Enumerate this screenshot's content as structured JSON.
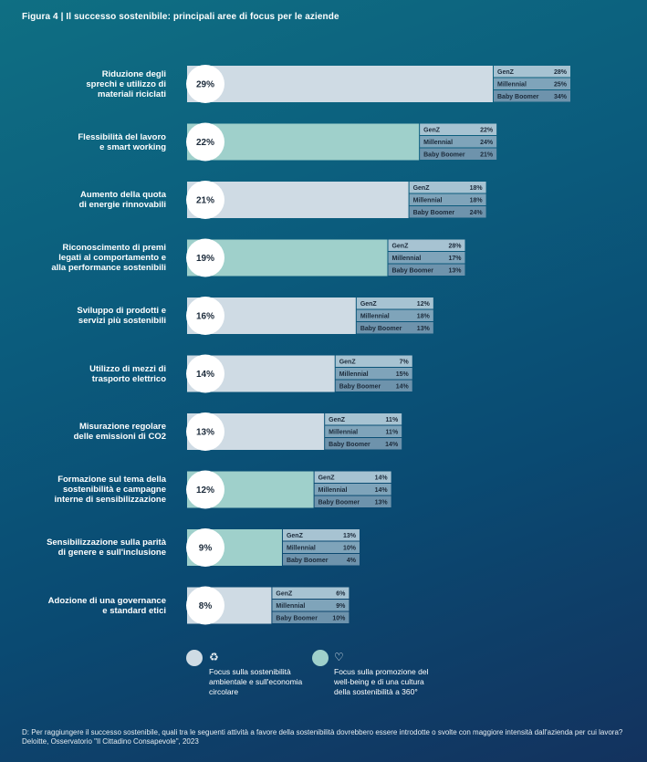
{
  "figure_title": "Figura 4 | Il successo sostenibile: principali aree di focus per le aziende",
  "legend": [
    {
      "label": "Focus sulla sostenibilità ambientale e sull'economia circolare",
      "color": "#cfdbe4",
      "icon": "leaf-hands-icon"
    },
    {
      "label": "Focus sulla promozione del well-being e di una cultura della sostenibilità a 360°",
      "color": "#9fd0cb",
      "icon": "heart-hands-icon"
    }
  ],
  "footnote": {
    "question": "D: Per raggiungere il successo sostenibile, quali tra le seguenti attività a favore della sostenibilità dovrebbero essere introdotte o svolte con maggiore intensità dall'azienda per cui lavora?",
    "source": "Deloitte, Osservatorio \"Il Cittadino Consapevole\", 2023"
  },
  "colors": {
    "environmental": "#cfdbe4",
    "wellbeing": "#9fd0cb",
    "breakdown_genz": "#a7c3d2",
    "breakdown_millennial": "#7fa4ba",
    "breakdown_babyboomer": "#6e93ac",
    "circle": "#ffffff",
    "text_dark": "#1b2a3a"
  },
  "chart_data": {
    "type": "bar",
    "orientation": "horizontal",
    "title": "Figura 4 | Il successo sostenibile: principali aree di focus per le aziende",
    "value_unit": "%",
    "xlim": [
      0,
      29
    ],
    "breakdown_groups": [
      "GenZ",
      "Millennial",
      "Baby Boomer"
    ],
    "categories": [
      {
        "label": "Riduzione degli\nsprechi e utilizzo di\nmateriali riciclati",
        "value": 29,
        "focus": "environmental",
        "breakdown": [
          28,
          25,
          34
        ]
      },
      {
        "label": "Flessibilità del lavoro\ne smart working",
        "value": 22,
        "focus": "wellbeing",
        "breakdown": [
          22,
          24,
          21
        ]
      },
      {
        "label": "Aumento della quota\ndi energie rinnovabili",
        "value": 21,
        "focus": "environmental",
        "breakdown": [
          18,
          18,
          24
        ]
      },
      {
        "label": "Riconoscimento di premi\nlegati al comportamento e\nalla performance sostenibili",
        "value": 19,
        "focus": "wellbeing",
        "breakdown": [
          28,
          17,
          13
        ]
      },
      {
        "label": "Sviluppo di prodotti e\nservizi più sostenibili",
        "value": 16,
        "focus": "environmental",
        "breakdown": [
          12,
          18,
          13
        ]
      },
      {
        "label": "Utilizzo di mezzi di\ntrasporto elettrico",
        "value": 14,
        "focus": "environmental",
        "breakdown": [
          7,
          15,
          14
        ]
      },
      {
        "label": "Misurazione regolare\ndelle emissioni di CO2",
        "value": 13,
        "focus": "environmental",
        "breakdown": [
          11,
          11,
          14
        ]
      },
      {
        "label": "Formazione sul tema della\nsostenibilità e campagne\ninterne di sensibilizzazione",
        "value": 12,
        "focus": "wellbeing",
        "breakdown": [
          14,
          14,
          13
        ]
      },
      {
        "label": "Sensibilizzazione sulla parità\ndi genere e sull'inclusione",
        "value": 9,
        "focus": "wellbeing",
        "breakdown": [
          13,
          10,
          4
        ]
      },
      {
        "label": "Adozione di una governance\ne standard etici",
        "value": 8,
        "focus": "environmental",
        "breakdown": [
          6,
          9,
          10
        ]
      }
    ]
  }
}
